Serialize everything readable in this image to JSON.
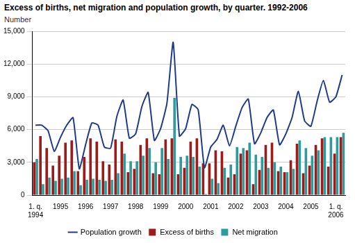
{
  "chart_data": {
    "type": "bar",
    "title": "Excess of births, net migration and population growth, by quarter. 1992-2006",
    "ylabel": "Number",
    "categories": [
      "1. q. 1994",
      null,
      null,
      null,
      "1995",
      null,
      null,
      null,
      "1996",
      null,
      null,
      null,
      "1997",
      null,
      null,
      null,
      "1998",
      null,
      null,
      null,
      "1999",
      null,
      null,
      null,
      "2000",
      null,
      null,
      null,
      "2001",
      null,
      null,
      null,
      "2002",
      null,
      null,
      null,
      "2003",
      null,
      null,
      null,
      "2004",
      null,
      null,
      null,
      "2005",
      null,
      null,
      null,
      "1. q. 2006",
      null
    ],
    "series": [
      {
        "name": "Excess of births",
        "type": "bar",
        "color": "#9e1b1b",
        "values": [
          3000,
          5400,
          4300,
          2700,
          3600,
          4800,
          5000,
          2200,
          3500,
          5200,
          4900,
          3100,
          2800,
          5100,
          4900,
          2100,
          2400,
          4600,
          5200,
          2000,
          1900,
          5100,
          5200,
          1900,
          2500,
          4900,
          5200,
          2900,
          2900,
          4100,
          4000,
          1600,
          1900,
          3800,
          4100,
          1000,
          2300,
          4600,
          4800,
          2200,
          2100,
          3200,
          4700,
          2000,
          2700,
          4600,
          5200,
          2600,
          3800,
          5300
        ]
      },
      {
        "name": "Net migration",
        "type": "bar",
        "color": "#2e9c9a",
        "values": [
          3300,
          1000,
          1600,
          1300,
          1500,
          1600,
          2200,
          900,
          1400,
          1500,
          1400,
          1300,
          1400,
          2000,
          3800,
          3100,
          3100,
          3600,
          4300,
          3000,
          4300,
          3300,
          8900,
          3500,
          3600,
          3500,
          2600,
          100,
          1500,
          1100,
          2500,
          2800,
          4400,
          4300,
          4800,
          3700,
          3500,
          2500,
          3000,
          2600,
          2100,
          2400,
          5000,
          4300,
          3600,
          4100,
          5300,
          5300,
          5300,
          5700
        ]
      },
      {
        "name": "Population growth",
        "type": "line",
        "color": "#1f3a8a",
        "values": [
          6400,
          6400,
          5900,
          4000,
          5300,
          6400,
          7100,
          2400,
          4600,
          6600,
          6400,
          4400,
          4300,
          7200,
          8700,
          5200,
          5600,
          8100,
          9400,
          5000,
          6100,
          8400,
          14000,
          5400,
          6100,
          8300,
          7800,
          2500,
          4400,
          5100,
          6400,
          4500,
          6300,
          8000,
          8800,
          4700,
          5700,
          7100,
          7800,
          4600,
          5600,
          7100,
          9500,
          6800,
          6300,
          8600,
          10500,
          8500,
          9000,
          11000
        ]
      }
    ],
    "ylim": [
      0,
      15000
    ],
    "yticks": [
      0,
      3000,
      6000,
      9000,
      12000,
      15000
    ],
    "grid": true,
    "legend": "bottom"
  }
}
